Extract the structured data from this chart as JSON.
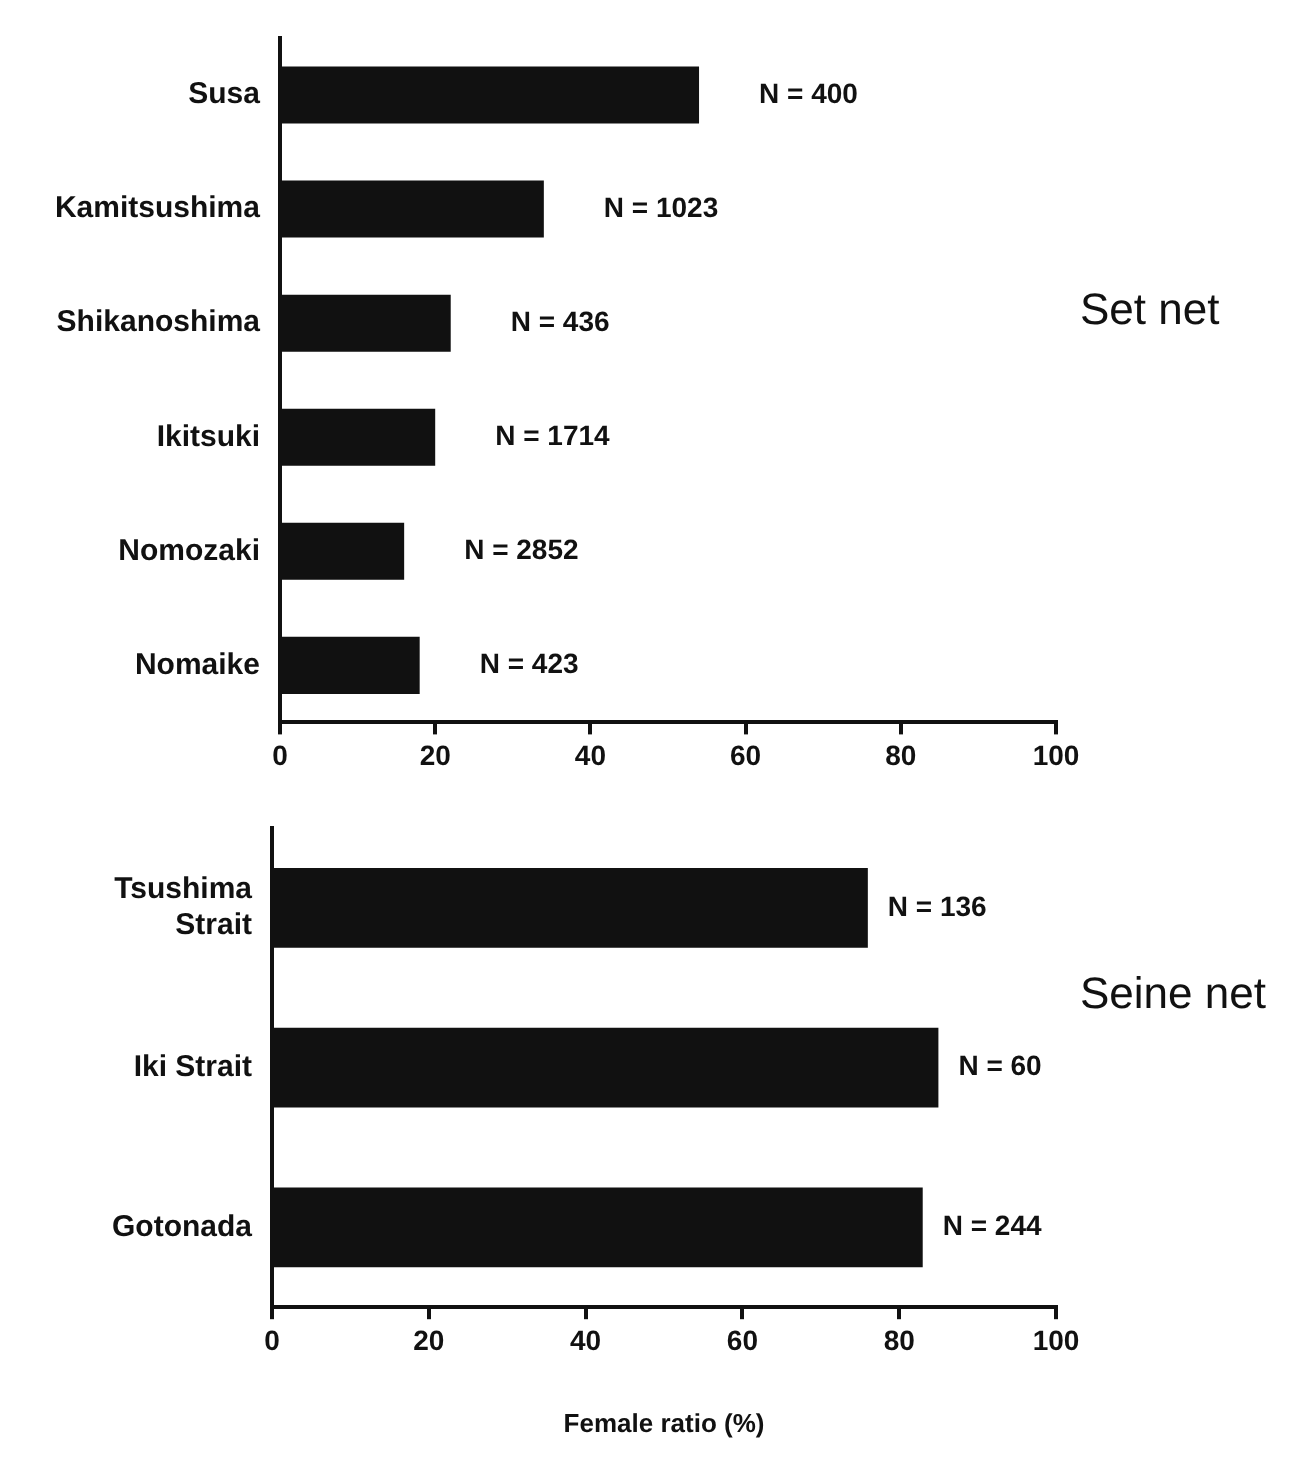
{
  "chart_data": [
    {
      "type": "bar",
      "orientation": "horizontal",
      "title": "Set net",
      "categories": [
        "Susa",
        "Kamitsushima",
        "Shikanoshima",
        "Ikitsuki",
        "Nomozaki",
        "Nomaike"
      ],
      "values": [
        54,
        34,
        22,
        20,
        16,
        18
      ],
      "color": "#111111",
      "annotations": [
        "N = 400",
        "N = 1023",
        "N = 436",
        "N = 1714",
        "N = 2852",
        "N = 423"
      ],
      "xlim": [
        0,
        100
      ],
      "xticks": [
        0,
        20,
        40,
        60,
        80,
        100
      ],
      "grid": false,
      "legend": false
    },
    {
      "type": "bar",
      "orientation": "horizontal",
      "title": "Seine net",
      "xlabel": "Female ratio (%)",
      "categories": [
        "Tsushima Strait",
        "Iki Strait",
        "Gotonada"
      ],
      "values": [
        76,
        85,
        83
      ],
      "color": "#111111",
      "annotations": [
        "N = 136",
        "N = 60",
        "N = 244"
      ],
      "xlim": [
        0,
        100
      ],
      "xticks": [
        0,
        20,
        40,
        60,
        80,
        100
      ],
      "grid": false,
      "legend": false
    }
  ]
}
